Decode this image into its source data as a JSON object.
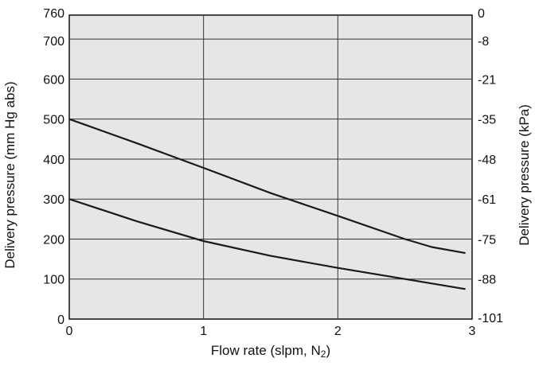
{
  "chart_data": {
    "type": "line",
    "title": "",
    "xlabel": "Flow rate (slpm, N",
    "xlabel_subscript": "2",
    "xlabel_suffix": ")",
    "ylabel": "Delivery pressure (mm Hg abs)",
    "ylabel_right": "Delivery pressure (kPa)",
    "xlim": [
      0,
      3
    ],
    "ylim": [
      0,
      760
    ],
    "x_ticks": [
      "0",
      "1",
      "2",
      "3"
    ],
    "y_ticks": [
      "0",
      "100",
      "200",
      "300",
      "400",
      "500",
      "600",
      "700",
      "760"
    ],
    "y_right_ticks": [
      "-101",
      "-88",
      "-75",
      "-61",
      "-48",
      "-35",
      "-21",
      "-8",
      "0"
    ],
    "grid": true,
    "plot_background": "#e6e6e6",
    "line_color": "#1a1a1a",
    "series": [
      {
        "x": [
          0,
          0.5,
          1,
          1.5,
          2,
          2.5,
          2.7,
          2.95
        ],
        "y": [
          500,
          440,
          378,
          315,
          258,
          200,
          180,
          165
        ]
      },
      {
        "x": [
          0,
          0.5,
          1,
          1.5,
          2,
          2.5,
          2.95
        ],
        "y": [
          300,
          245,
          195,
          158,
          128,
          100,
          75
        ]
      }
    ]
  }
}
